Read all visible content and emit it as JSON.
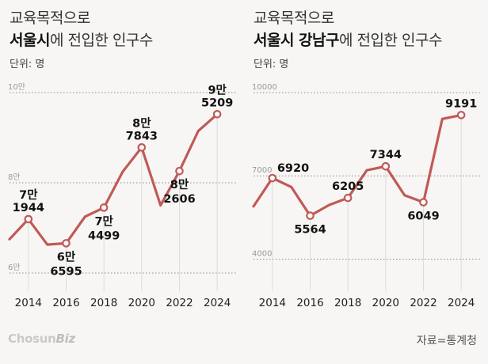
{
  "chart_data": [
    {
      "type": "line",
      "title_line1": "교육목적으로",
      "title_bold": "서울시",
      "title_rest": "에 전입한 인구수",
      "unit": "단위: 명",
      "x": [
        2013,
        2014,
        2015,
        2016,
        2017,
        2018,
        2019,
        2020,
        2021,
        2022,
        2023,
        2024
      ],
      "values": [
        67500,
        71944,
        66300,
        66595,
        72500,
        74499,
        82500,
        87843,
        75000,
        82606,
        91500,
        95209
      ],
      "ylim": [
        60000,
        100000
      ],
      "yticks": [
        {
          "value": 100000,
          "label": "10만"
        },
        {
          "value": 80000,
          "label": "8만"
        },
        {
          "value": 60000,
          "label": "6만"
        }
      ],
      "xticks": [
        "2014",
        "2016",
        "2018",
        "2020",
        "2022",
        "2024"
      ],
      "xtick_values": [
        2014,
        2016,
        2018,
        2020,
        2022,
        2024
      ],
      "xlim": [
        2013,
        2025
      ],
      "labels": [
        {
          "x": 2014,
          "value": 71944,
          "line1": "7만",
          "line2": "1944",
          "pos": "above"
        },
        {
          "x": 2016,
          "value": 66595,
          "line1": "6만",
          "line2": "6595",
          "pos": "below"
        },
        {
          "x": 2018,
          "value": 74499,
          "line1": "7만",
          "line2": "4499",
          "pos": "below"
        },
        {
          "x": 2020,
          "value": 87843,
          "line1": "8만",
          "line2": "7843",
          "pos": "above"
        },
        {
          "x": 2022,
          "value": 82606,
          "line1": "8만",
          "line2": "2606",
          "pos": "below"
        },
        {
          "x": 2024,
          "value": 95209,
          "line1": "9만",
          "line2": "5209",
          "pos": "above"
        }
      ],
      "line_color": "#c05a56"
    },
    {
      "type": "line",
      "title_line1": "교육목적으로",
      "title_bold": "서울시 강남구",
      "title_rest": "에 전입한 인구수",
      "unit": "단위: 명",
      "x": [
        2013,
        2014,
        2015,
        2016,
        2017,
        2018,
        2019,
        2020,
        2021,
        2022,
        2023,
        2024
      ],
      "values": [
        5900,
        6920,
        6600,
        5564,
        5950,
        6205,
        7200,
        7344,
        6300,
        6049,
        9050,
        9191
      ],
      "ylim": [
        3500,
        10000
      ],
      "yticks": [
        {
          "value": 10000,
          "label": "10000"
        },
        {
          "value": 7000,
          "label": "7000"
        },
        {
          "value": 4000,
          "label": "4000"
        }
      ],
      "xticks": [
        "2014",
        "2016",
        "2018",
        "2020",
        "2022",
        "2024"
      ],
      "xtick_values": [
        2014,
        2016,
        2018,
        2020,
        2022,
        2024
      ],
      "xlim": [
        2013,
        2025
      ],
      "labels": [
        {
          "x": 2014,
          "value": 6920,
          "line1": "6920",
          "line2": "",
          "pos": "right"
        },
        {
          "x": 2016,
          "value": 5564,
          "line1": "5564",
          "line2": "",
          "pos": "below"
        },
        {
          "x": 2018,
          "value": 6205,
          "line1": "6205",
          "line2": "",
          "pos": "above"
        },
        {
          "x": 2020,
          "value": 7344,
          "line1": "7344",
          "line2": "",
          "pos": "above"
        },
        {
          "x": 2022,
          "value": 6049,
          "line1": "6049",
          "line2": "",
          "pos": "below"
        },
        {
          "x": 2024,
          "value": 9191,
          "line1": "9191",
          "line2": "",
          "pos": "above"
        }
      ],
      "line_color": "#c05a56"
    }
  ],
  "footer": {
    "logo_main": "Chosun",
    "logo_accent": "Biz",
    "source": "자료=통계청"
  },
  "colors": {
    "line": "#c05a56",
    "grid": "#8c8c8c",
    "background": "#f7f6f4"
  }
}
